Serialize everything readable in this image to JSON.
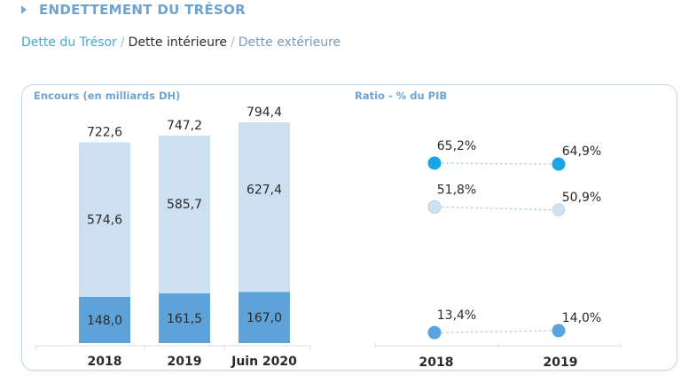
{
  "header": {
    "title": "ENDETTEMENT DU TRÉSOR",
    "icon": "chevron-right-icon"
  },
  "breadcrumb": {
    "items": [
      {
        "label": "Dette du Trésor",
        "state": "link"
      },
      {
        "label": "Dette intérieure",
        "state": "active"
      },
      {
        "label": "Dette extérieure",
        "state": "link"
      }
    ],
    "separator": "/"
  },
  "colors": {
    "accent": "#6fa3cf",
    "bar_light": "#cce0f1",
    "bar_dark": "#5da2d8",
    "dot_primary": "#1aa6e6",
    "dot_light": "#cfe2f3",
    "dot_mid": "#5aa3dc"
  },
  "chart_data": [
    {
      "type": "bar",
      "title": "Encours (en milliards DH)",
      "stacked": true,
      "categories": [
        "2018",
        "2019",
        "Juin 2020"
      ],
      "series": [
        {
          "name": "lower",
          "values": [
            148.0,
            161.5,
            167.0
          ],
          "labels": [
            "148,0",
            "161,5",
            "167,0"
          ],
          "color": "#5da2d8"
        },
        {
          "name": "upper",
          "values": [
            574.6,
            585.7,
            627.4
          ],
          "labels": [
            "574,6",
            "585,7",
            "627,4"
          ],
          "color": "#cce0f1"
        }
      ],
      "totals": [
        722.6,
        747.2,
        794.4
      ],
      "total_labels": [
        "722,6",
        "747,2",
        "794,4"
      ],
      "xlabel": "",
      "ylabel": "",
      "ylim": [
        0,
        860
      ],
      "grid": false
    },
    {
      "type": "scatter",
      "title": "Ratio - % du PIB",
      "categories": [
        "2018",
        "2019"
      ],
      "series": [
        {
          "name": "series-1",
          "values": [
            65.2,
            64.9
          ],
          "labels": [
            "65,2%",
            "64,9%"
          ],
          "color": "#1aa6e6",
          "style": "solid"
        },
        {
          "name": "series-2",
          "values": [
            51.8,
            50.9
          ],
          "labels": [
            "51,8%",
            "50,9%"
          ],
          "color": "#cfe2f3",
          "style": "light"
        },
        {
          "name": "series-3",
          "values": [
            13.4,
            14.0
          ],
          "labels": [
            "13,4%",
            "14,0%"
          ],
          "color": "#5aa3dc",
          "style": "solid"
        }
      ],
      "connector": "dotted",
      "xlabel": "",
      "ylabel": "",
      "grid": false
    }
  ]
}
